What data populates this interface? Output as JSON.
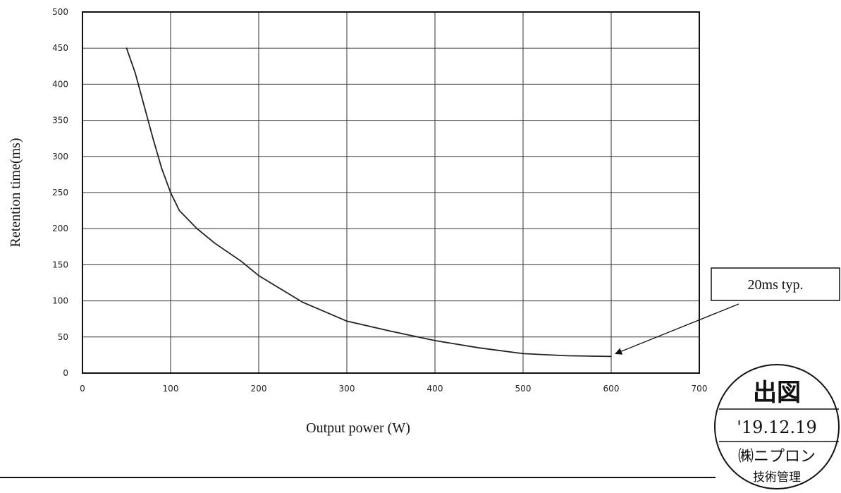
{
  "chart_data": {
    "type": "line",
    "title": "",
    "xlabel": "Output power (W)",
    "ylabel": "Retention time(ms)",
    "xlim": [
      0,
      700
    ],
    "ylim": [
      0,
      500
    ],
    "xticks": [
      0,
      100,
      200,
      300,
      400,
      500,
      600,
      700
    ],
    "yticks": [
      0,
      50,
      100,
      150,
      200,
      250,
      300,
      350,
      400,
      450,
      500
    ],
    "grid": true,
    "series": [
      {
        "x": [
          50,
          60,
          70,
          80,
          90,
          100,
          110,
          130,
          150,
          180,
          200,
          250,
          300,
          350,
          400,
          450,
          500,
          550,
          600
        ],
        "y": [
          450,
          415,
          370,
          325,
          283,
          250,
          225,
          200,
          180,
          155,
          135,
          98,
          72,
          58,
          45,
          35,
          27,
          24,
          23
        ],
        "color": "#222222"
      }
    ],
    "annotations": [
      {
        "text": "20ms typ.",
        "points_to": {
          "x": 600,
          "y": 22
        }
      }
    ]
  },
  "stamp": {
    "line1": "出図",
    "line2": "'19.12.19",
    "line3": "㈱ニプロン",
    "line4": "技術管理"
  }
}
